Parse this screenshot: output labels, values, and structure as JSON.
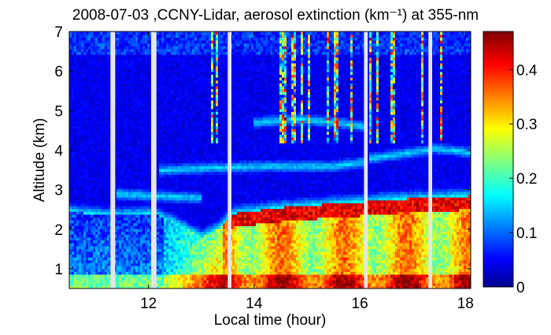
{
  "chart_data": {
    "type": "heatmap",
    "title": "2008-07-03 ,CCNY-Lidar, aerosol extinction (km⁻¹) at 355-nm",
    "xlabel": "Local time (hour)",
    "ylabel": "Altitude (km)",
    "x_range": [
      10.5,
      18.1
    ],
    "y_range": [
      0.5,
      7.0
    ],
    "x_ticks": [
      12,
      14,
      16,
      18
    ],
    "y_ticks": [
      1,
      2,
      3,
      4,
      5,
      6,
      7
    ],
    "colorbar": {
      "range": [
        0,
        0.47
      ],
      "ticks": [
        0,
        0.1,
        0.2,
        0.3,
        0.4
      ],
      "colormap": "jet"
    },
    "data_gaps_hours": [
      [
        11.28,
        11.37
      ],
      [
        12.05,
        12.15
      ],
      [
        13.5,
        13.57
      ],
      [
        16.08,
        16.15
      ],
      [
        17.3,
        17.37
      ]
    ],
    "boundary_layer_top_km": [
      [
        10.5,
        2.45
      ],
      [
        11.3,
        2.35
      ],
      [
        12.1,
        2.4
      ],
      [
        12.6,
        2.1
      ],
      [
        13.0,
        1.8
      ],
      [
        13.3,
        2.0
      ],
      [
        13.6,
        2.4
      ],
      [
        14.5,
        2.55
      ],
      [
        15.5,
        2.65
      ],
      [
        16.1,
        2.7
      ],
      [
        16.5,
        2.75
      ],
      [
        17.3,
        2.8
      ],
      [
        18.1,
        2.85
      ]
    ],
    "elevated_layers_km": [
      {
        "name": "",
        "points": [
          [
            11.4,
            2.9
          ],
          [
            12.1,
            2.85
          ],
          [
            13.0,
            2.8
          ]
        ]
      },
      {
        "name": "",
        "points": [
          [
            12.2,
            3.5
          ],
          [
            13.0,
            3.55
          ],
          [
            14.2,
            3.6
          ],
          [
            15.5,
            3.6
          ],
          [
            16.1,
            3.7
          ]
        ]
      },
      {
        "name": "",
        "points": [
          [
            14.0,
            4.7
          ],
          [
            14.8,
            4.8
          ],
          [
            15.6,
            4.7
          ],
          [
            16.1,
            4.6
          ]
        ]
      },
      {
        "name": "",
        "points": [
          [
            16.2,
            3.8
          ],
          [
            17.0,
            3.95
          ],
          [
            17.3,
            4.0
          ],
          [
            17.4,
            4.05
          ],
          [
            18.1,
            3.95
          ]
        ]
      }
    ]
  }
}
